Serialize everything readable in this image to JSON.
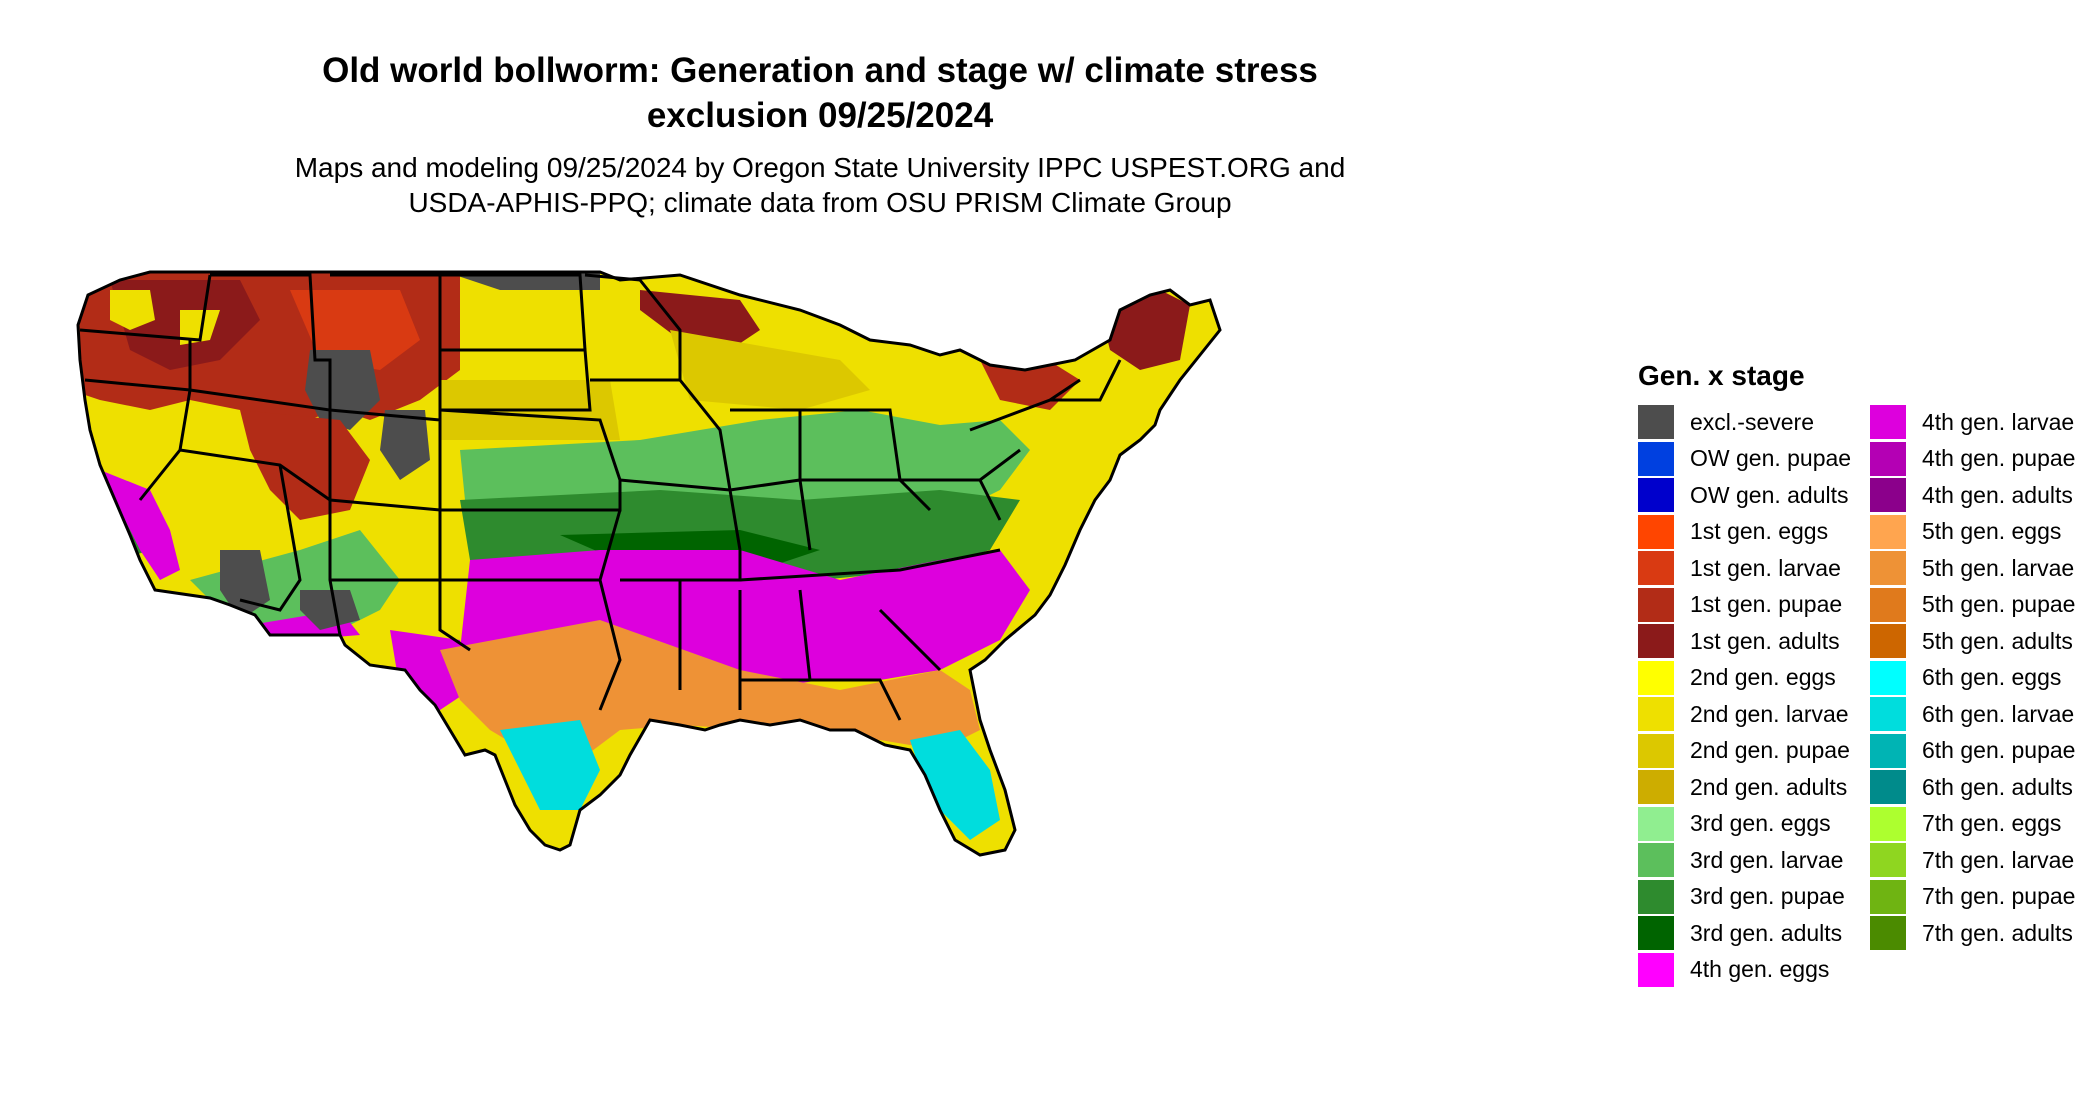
{
  "header": {
    "title_line1": "Old world bollworm: Generation and stage w/ climate stress",
    "title_line2": "exclusion 09/25/2024",
    "subtitle_line1": "Maps and modeling 09/25/2024 by Oregon State University IPPC USPEST.ORG and",
    "subtitle_line2": "USDA-APHIS-PPQ; climate data from OSU PRISM Climate Group"
  },
  "legend": {
    "title": "Gen. x stage",
    "column1": [
      {
        "label": "excl.-severe",
        "color": "#4d4d4d"
      },
      {
        "label": "OW gen. pupae",
        "color": "#0040e0"
      },
      {
        "label": "OW gen. adults",
        "color": "#0000cc"
      },
      {
        "label": "1st gen. eggs",
        "color": "#ff4500"
      },
      {
        "label": "1st gen. larvae",
        "color": "#d93a12"
      },
      {
        "label": "1st gen. pupae",
        "color": "#b22c17"
      },
      {
        "label": "1st gen. adults",
        "color": "#8b1a1a"
      },
      {
        "label": "2nd gen. eggs",
        "color": "#ffff00"
      },
      {
        "label": "2nd gen. larvae",
        "color": "#eee000"
      },
      {
        "label": "2nd gen. pupae",
        "color": "#dcc800"
      },
      {
        "label": "2nd gen. adults",
        "color": "#cdad00"
      },
      {
        "label": "3rd gen. eggs",
        "color": "#90ee90"
      },
      {
        "label": "3rd gen. larvae",
        "color": "#5cbf5c"
      },
      {
        "label": "3rd gen. pupae",
        "color": "#2e8b2e"
      },
      {
        "label": "3rd gen. adults",
        "color": "#006400"
      },
      {
        "label": "4th gen. eggs",
        "color": "#ff00ff"
      }
    ],
    "column2": [
      {
        "label": "4th gen. larvae",
        "color": "#dd00dd"
      },
      {
        "label": "4th gen. pupae",
        "color": "#b400b4"
      },
      {
        "label": "4th gen. adults",
        "color": "#8b008b"
      },
      {
        "label": "5th gen. eggs",
        "color": "#ffa54f"
      },
      {
        "label": "5th gen. larvae",
        "color": "#ee9236"
      },
      {
        "label": "5th gen. pupae",
        "color": "#e07a1c"
      },
      {
        "label": "5th gen. adults",
        "color": "#cd6600"
      },
      {
        "label": "6th gen. eggs",
        "color": "#00ffff"
      },
      {
        "label": "6th gen. larvae",
        "color": "#00dddd"
      },
      {
        "label": "6th gen. pupae",
        "color": "#00b4b4"
      },
      {
        "label": "6th gen. adults",
        "color": "#008b8b"
      },
      {
        "label": "7th gen. eggs",
        "color": "#adff2f"
      },
      {
        "label": "7th gen. larvae",
        "color": "#8fd620"
      },
      {
        "label": "7th gen. pupae",
        "color": "#6fb412"
      },
      {
        "label": "7th gen. adults",
        "color": "#4b8b00"
      }
    ]
  }
}
